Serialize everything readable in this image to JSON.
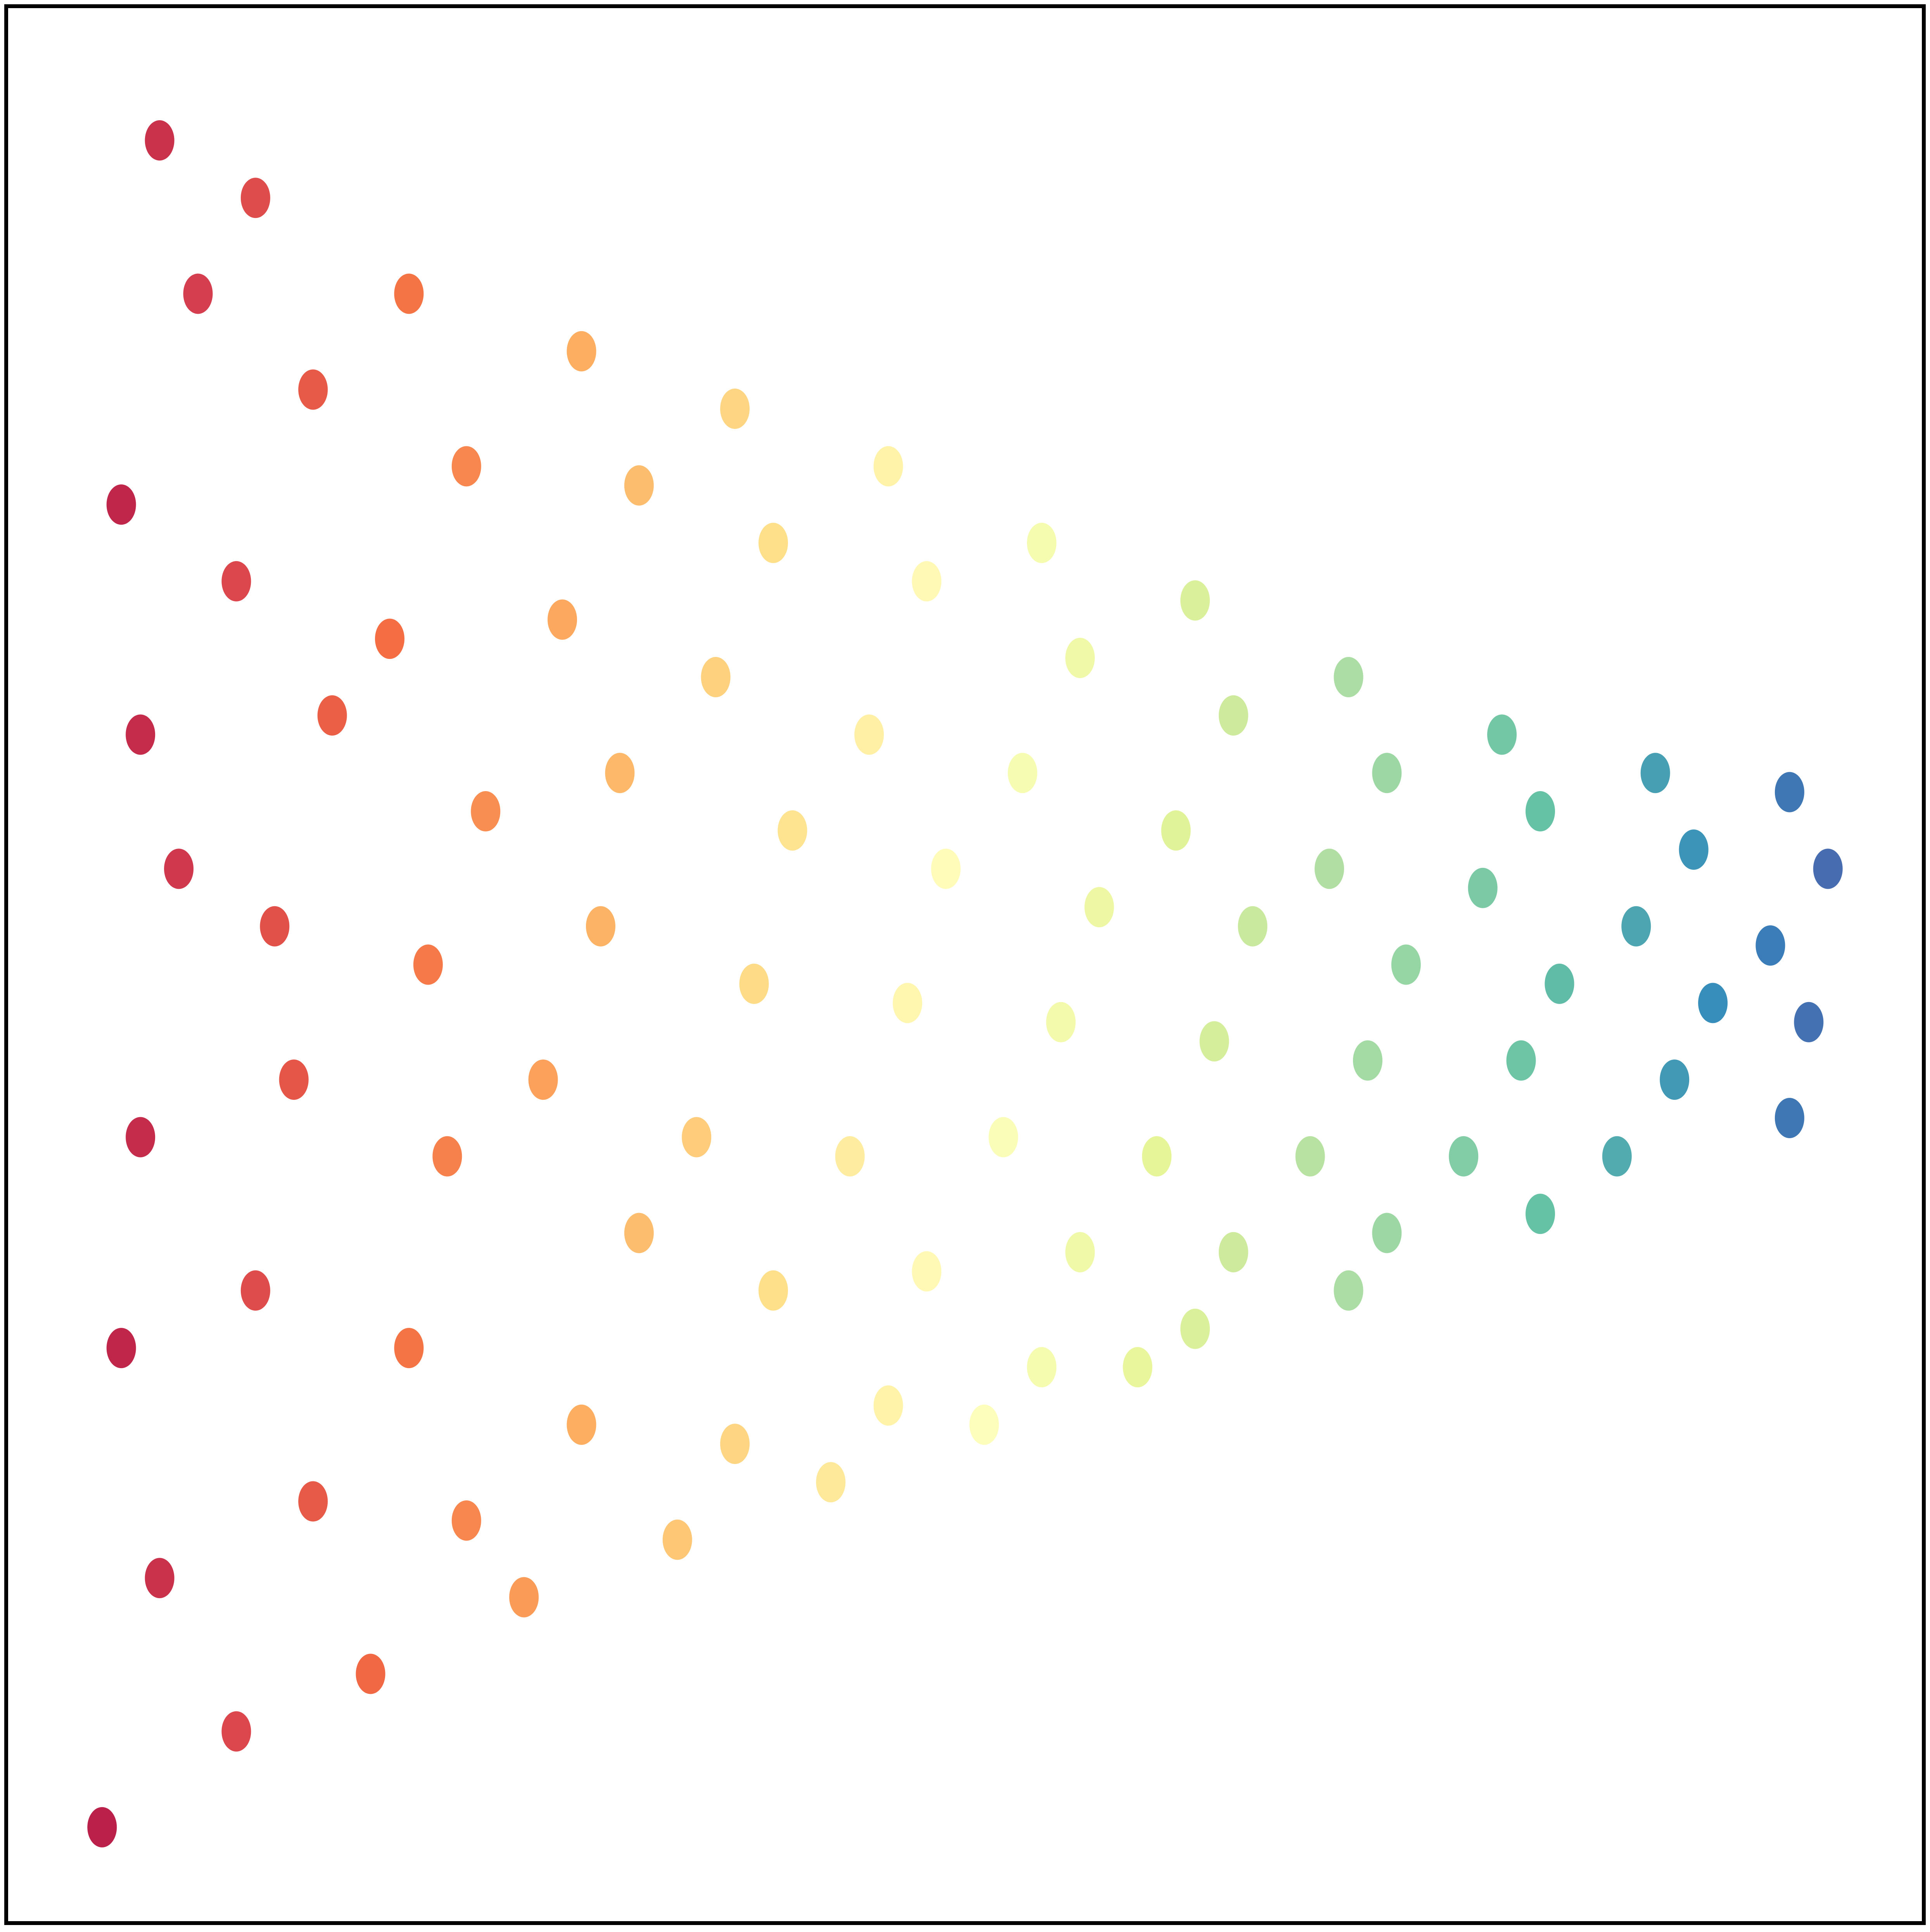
{
  "chart_data": {
    "type": "scatter",
    "xlim": [
      0,
      1
    ],
    "ylim": [
      0,
      1
    ],
    "colormap": [
      "#9e0142",
      "#d53e4f",
      "#f46d43",
      "#fdae61",
      "#fee08b",
      "#ffffbf",
      "#e6f598",
      "#abdda4",
      "#66c2a5",
      "#3288bd",
      "#5e4fa2"
    ],
    "x": [
      0.08,
      0.1,
      0.06,
      0.07,
      0.09,
      0.07,
      0.06,
      0.08,
      0.05,
      0.13,
      0.16,
      0.12,
      0.17,
      0.14,
      0.15,
      0.13,
      0.16,
      0.12,
      0.21,
      0.24,
      0.2,
      0.25,
      0.22,
      0.23,
      0.21,
      0.24,
      0.19,
      0.3,
      0.33,
      0.29,
      0.32,
      0.31,
      0.28,
      0.33,
      0.3,
      0.27,
      0.38,
      0.4,
      0.37,
      0.41,
      0.39,
      0.36,
      0.4,
      0.38,
      0.35,
      0.46,
      0.48,
      0.45,
      0.49,
      0.47,
      0.44,
      0.48,
      0.46,
      0.43,
      0.54,
      0.56,
      0.53,
      0.57,
      0.55,
      0.52,
      0.56,
      0.54,
      0.51,
      0.62,
      0.64,
      0.61,
      0.65,
      0.63,
      0.6,
      0.64,
      0.62,
      0.59,
      0.7,
      0.72,
      0.69,
      0.73,
      0.71,
      0.68,
      0.72,
      0.7,
      0.78,
      0.8,
      0.77,
      0.81,
      0.79,
      0.76,
      0.8,
      0.86,
      0.88,
      0.85,
      0.89,
      0.87,
      0.84,
      0.93,
      0.95,
      0.92,
      0.94,
      0.93
    ],
    "y": [
      0.93,
      0.85,
      0.74,
      0.62,
      0.55,
      0.41,
      0.3,
      0.18,
      0.05,
      0.9,
      0.8,
      0.7,
      0.63,
      0.52,
      0.44,
      0.33,
      0.22,
      0.1,
      0.85,
      0.76,
      0.67,
      0.58,
      0.5,
      0.4,
      0.3,
      0.21,
      0.13,
      0.82,
      0.75,
      0.68,
      0.6,
      0.52,
      0.44,
      0.36,
      0.26,
      0.17,
      0.79,
      0.72,
      0.65,
      0.57,
      0.49,
      0.41,
      0.33,
      0.25,
      0.2,
      0.76,
      0.7,
      0.62,
      0.55,
      0.48,
      0.4,
      0.34,
      0.27,
      0.23,
      0.72,
      0.66,
      0.6,
      0.53,
      0.47,
      0.41,
      0.35,
      0.29,
      0.26,
      0.69,
      0.63,
      0.57,
      0.52,
      0.46,
      0.4,
      0.35,
      0.31,
      0.29,
      0.65,
      0.6,
      0.55,
      0.5,
      0.45,
      0.4,
      0.36,
      0.33,
      0.62,
      0.58,
      0.54,
      0.49,
      0.45,
      0.4,
      0.37,
      0.6,
      0.56,
      0.52,
      0.48,
      0.44,
      0.4,
      0.59,
      0.55,
      0.51,
      0.47,
      0.42
    ]
  }
}
